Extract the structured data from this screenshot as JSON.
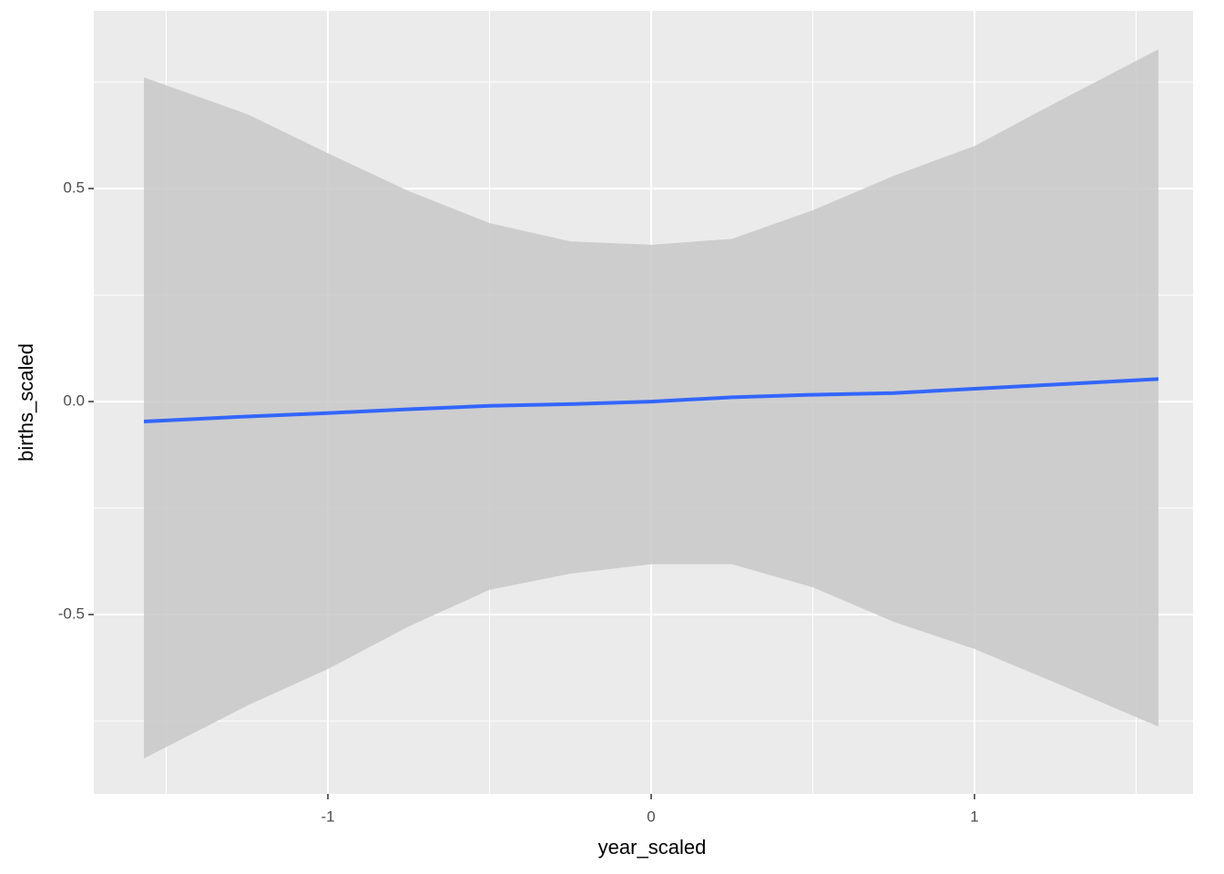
{
  "chart_data": {
    "type": "smooth",
    "x_label": "year_scaled",
    "y_label": "births_scaled",
    "x": [
      -1.569,
      -1.25,
      -1,
      -0.75,
      -0.5,
      -0.25,
      0,
      0.25,
      0.5,
      0.75,
      1,
      1.25,
      1.569
    ],
    "values": [
      -0.047,
      -0.035,
      -0.027,
      -0.018,
      -0.01,
      -0.006,
      0.0,
      0.01,
      0.016,
      0.02,
      0.03,
      0.04,
      0.053
    ],
    "lower": [
      -0.838,
      -0.714,
      -0.628,
      -0.528,
      -0.442,
      -0.404,
      -0.382,
      -0.382,
      -0.436,
      -0.517,
      -0.581,
      -0.66,
      -0.763
    ],
    "upper": [
      0.761,
      0.675,
      0.583,
      0.494,
      0.419,
      0.376,
      0.368,
      0.382,
      0.449,
      0.53,
      0.6,
      0.701,
      0.827
    ],
    "color": "#3366ff",
    "ribbon_color": "#c8c8c8",
    "xlim": [
      -1.724,
      1.676
    ],
    "ylim": [
      -0.921,
      0.917
    ],
    "xticks": [
      -1,
      0,
      1
    ],
    "yticks": [
      -0.5,
      {
        "value": 0,
        "label": "0.0"
      },
      0.5
    ],
    "minor_xticks": [
      -1.5,
      -0.5,
      0.5,
      1.5
    ],
    "minor_yticks": [
      -0.75,
      -0.25,
      0.25,
      0.75
    ],
    "grid": true
  }
}
